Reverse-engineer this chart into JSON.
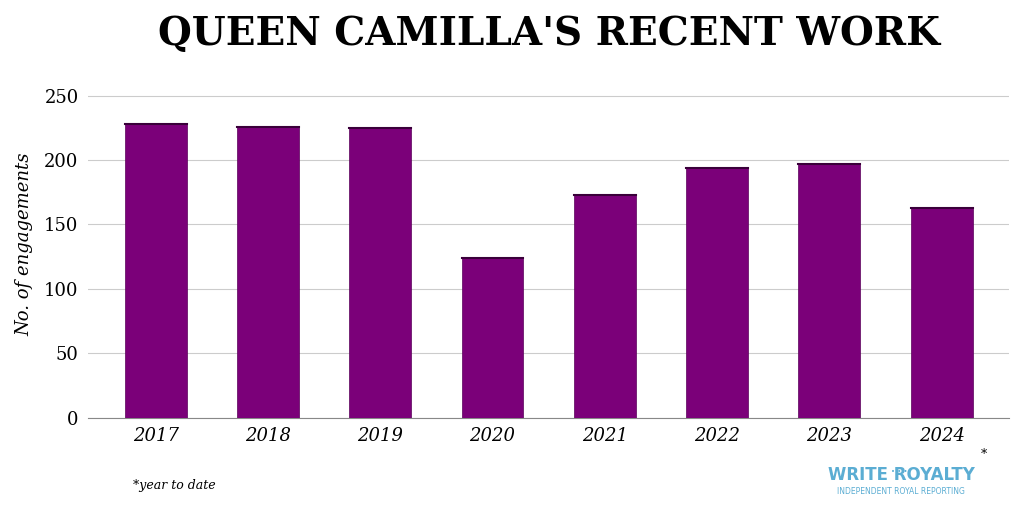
{
  "title": "QUEEN CAMILLA'S RECENT WORK",
  "ylabel": "No. of engagements",
  "years": [
    "2017",
    "2018",
    "2019",
    "2020",
    "2021",
    "2022",
    "2023",
    "2024"
  ],
  "values": [
    228,
    226,
    225,
    124,
    173,
    194,
    197,
    163
  ],
  "bar_color": "#7B0079",
  "bar_edge_color": "#5a005a",
  "ylim": [
    0,
    270
  ],
  "yticks": [
    0,
    50,
    100,
    150,
    200,
    250
  ],
  "background_color": "#ffffff",
  "grid_color": "#cccccc",
  "title_fontsize": 28,
  "ylabel_fontsize": 13,
  "tick_fontsize": 13,
  "footnote": "*year to date",
  "footnote_fontsize": 9,
  "watermark_text1": "WRITE ROYALTY",
  "watermark_text2": "INDEPENDENT ROYAL REPORTING",
  "watermark_color": "#5badd3"
}
